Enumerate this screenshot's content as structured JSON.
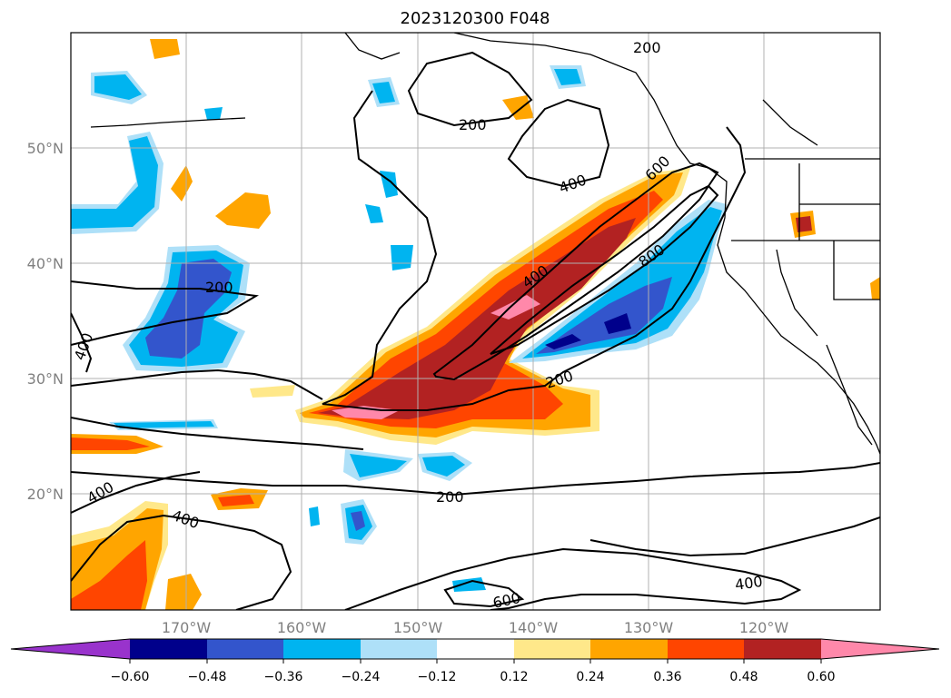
{
  "title": "2023120300 F048",
  "lat_labels": [
    "50°N",
    "40°N",
    "30°N",
    "20°N"
  ],
  "lon_labels": [
    "170°W",
    "160°W",
    "150°W",
    "140°W",
    "130°W",
    "120°W"
  ],
  "contour_labels": [
    "200",
    "200",
    "200",
    "200",
    "200",
    "400",
    "400",
    "400",
    "400",
    "400",
    "400",
    "600",
    "600",
    "800"
  ],
  "colorbar": {
    "ticks": [
      "−0.60",
      "−0.48",
      "−0.36",
      "−0.24",
      "−0.12",
      "0.12",
      "0.24",
      "0.36",
      "0.48",
      "0.60"
    ],
    "colors": [
      "#9933cc",
      "#00008b",
      "#3355cc",
      "#00b4f0",
      "#aee0f8",
      "#ffffff",
      "#ffe88a",
      "#ffa500",
      "#ff4500",
      "#b22222",
      "#ff88aa"
    ],
    "extend": "both"
  },
  "chart_data": {
    "type": "map",
    "projection": "PlateCarree",
    "lon_range": [
      -180,
      -110
    ],
    "lat_range": [
      10,
      60
    ],
    "grid": true,
    "filled_field_levels": [
      -0.6,
      -0.48,
      -0.36,
      -0.24,
      -0.12,
      0.12,
      0.24,
      0.36,
      0.48,
      0.6
    ],
    "contour_levels": [
      200,
      400,
      600,
      800
    ]
  }
}
